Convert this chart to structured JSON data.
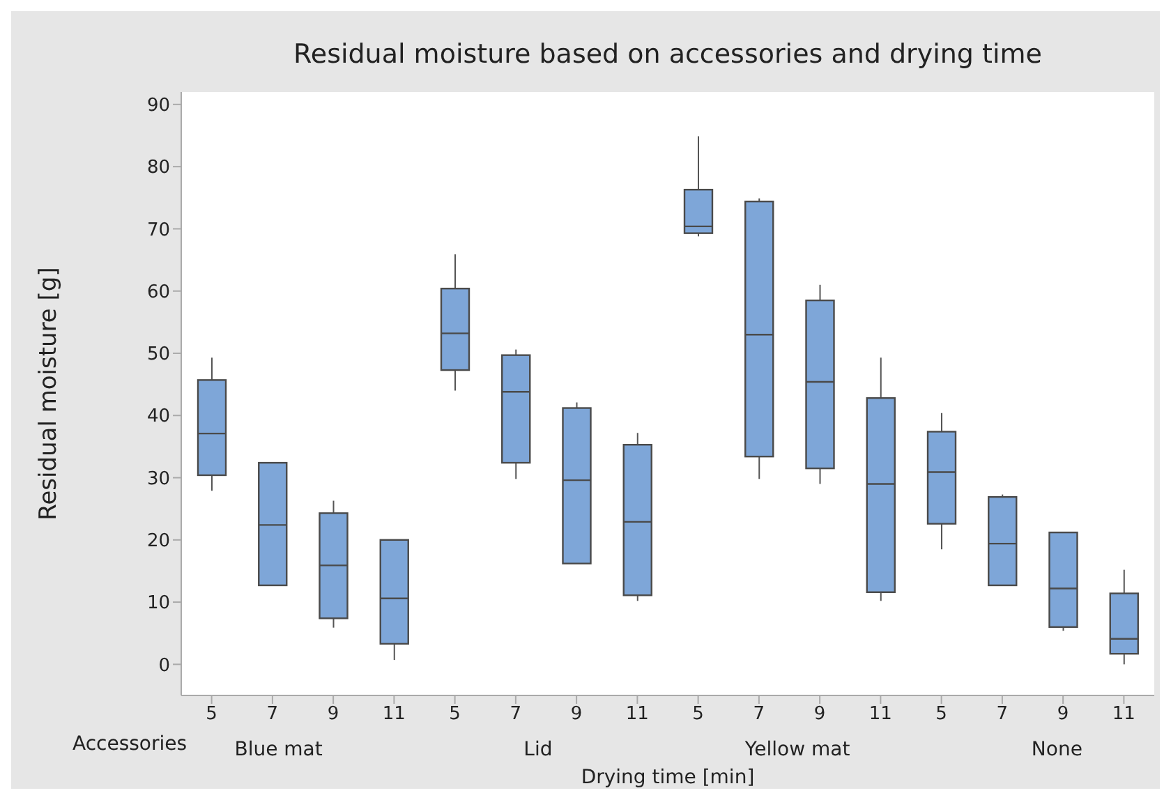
{
  "chart_data": {
    "type": "box",
    "title": "Residual moisture based on accessories and drying time",
    "xlabel": "Drying time [min]",
    "ylabel": "Residual moisture [g]",
    "categories": [
      "5",
      "7",
      "9",
      "11",
      "5",
      "7",
      "9",
      "11",
      "5",
      "7",
      "9",
      "11",
      "5",
      "7",
      "9",
      "11"
    ],
    "annotations": [
      "Accessories",
      "Blue mat",
      "Lid",
      "Yellow mat",
      "None"
    ],
    "ylim": [
      -5,
      92
    ],
    "yticks": [
      0,
      10,
      20,
      30,
      40,
      50,
      60,
      70,
      80,
      90
    ],
    "grid": false,
    "legend": false,
    "series": [
      {
        "color": "#7ea6d8",
        "boxes": [
          {
            "low": 27.9,
            "q1": 30.4,
            "median": 37.1,
            "q3": 45.7,
            "high": 49.3
          },
          {
            "low": 12.7,
            "q1": 12.7,
            "median": 22.4,
            "q3": 32.4,
            "high": 32.4
          },
          {
            "low": 5.9,
            "q1": 7.4,
            "median": 15.9,
            "q3": 24.3,
            "high": 26.3
          },
          {
            "low": 0.7,
            "q1": 3.3,
            "median": 10.6,
            "q3": 20.0,
            "high": 20.0
          },
          {
            "low": 44.0,
            "q1": 47.3,
            "median": 53.2,
            "q3": 60.4,
            "high": 65.9
          },
          {
            "low": 29.8,
            "q1": 32.4,
            "median": 43.8,
            "q3": 49.7,
            "high": 50.6
          },
          {
            "low": 16.2,
            "q1": 16.2,
            "median": 29.6,
            "q3": 41.2,
            "high": 42.1
          },
          {
            "low": 10.2,
            "q1": 11.1,
            "median": 22.9,
            "q3": 35.3,
            "high": 37.2
          },
          {
            "low": 68.8,
            "q1": 69.3,
            "median": 70.4,
            "q3": 76.3,
            "high": 84.9
          },
          {
            "low": 29.8,
            "q1": 33.4,
            "median": 53.0,
            "q3": 74.4,
            "high": 74.9
          },
          {
            "low": 29.0,
            "q1": 31.5,
            "median": 45.4,
            "q3": 58.5,
            "high": 61.0
          },
          {
            "low": 10.2,
            "q1": 11.6,
            "median": 29.0,
            "q3": 42.8,
            "high": 49.3
          },
          {
            "low": 18.5,
            "q1": 22.6,
            "median": 30.9,
            "q3": 37.4,
            "high": 40.4
          },
          {
            "low": 12.7,
            "q1": 12.7,
            "median": 19.4,
            "q3": 26.9,
            "high": 27.3
          },
          {
            "low": 5.4,
            "q1": 6.0,
            "median": 12.2,
            "q3": 21.2,
            "high": 21.2
          },
          {
            "low": 0.0,
            "q1": 1.7,
            "median": 4.1,
            "q3": 11.4,
            "high": 15.2
          }
        ]
      }
    ]
  }
}
